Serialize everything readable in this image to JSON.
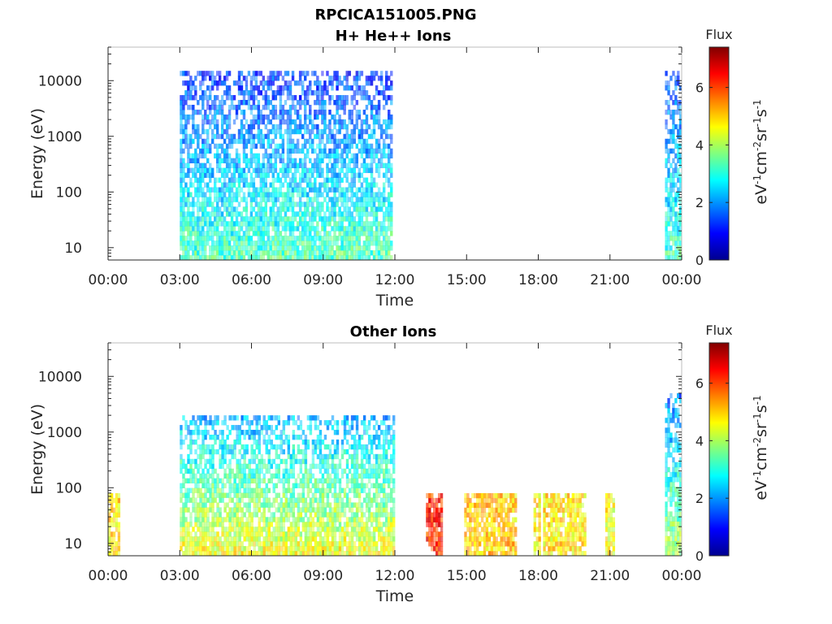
{
  "figure": {
    "filename_title": "RPCICA151005.PNG"
  },
  "colorbar": {
    "title": "Flux",
    "unit_label_parts": [
      "eV",
      "-1",
      "cm",
      "-2",
      "sr",
      "-1",
      "s",
      "-1"
    ],
    "ticks": [
      "0",
      "2",
      "4",
      "6"
    ],
    "range": [
      0,
      7.4
    ],
    "colormap": "jet"
  },
  "chart_data": [
    {
      "type": "heatmap",
      "title": "H+ He++ Ions",
      "xlabel": "Time",
      "ylabel": "Energy (eV)",
      "x_ticks": [
        "00:00",
        "03:00",
        "06:00",
        "09:00",
        "12:00",
        "15:00",
        "18:00",
        "21:00",
        "00:00"
      ],
      "x_range_hours": [
        0,
        24
      ],
      "y_scale": "log",
      "y_range_eV": [
        6,
        40000
      ],
      "y_ticks": [
        "10",
        "100",
        "1000",
        "10000"
      ],
      "flux_range": [
        0,
        7.4
      ],
      "data_segments": [
        {
          "start_hour": 3.0,
          "end_hour": 6.75,
          "max_energy_eV": 15000,
          "low_energy_flux": 3.3,
          "high_energy_flux": 1.3
        },
        {
          "start_hour": 6.75,
          "end_hour": 11.9,
          "max_energy_eV": 15000,
          "low_energy_flux": 3.4,
          "high_energy_flux": 1.3
        },
        {
          "start_hour": 23.3,
          "end_hour": 24.0,
          "max_energy_eV": 15000,
          "low_energy_flux": 3.2,
          "high_energy_flux": 1.5
        }
      ]
    },
    {
      "type": "heatmap",
      "title": "Other Ions",
      "xlabel": "Time",
      "ylabel": "Energy (eV)",
      "x_ticks": [
        "00:00",
        "03:00",
        "06:00",
        "09:00",
        "12:00",
        "15:00",
        "18:00",
        "21:00",
        "00:00"
      ],
      "x_range_hours": [
        0,
        24
      ],
      "y_scale": "log",
      "y_range_eV": [
        6,
        40000
      ],
      "y_ticks": [
        "10",
        "100",
        "1000",
        "10000"
      ],
      "flux_range": [
        0,
        7.4
      ],
      "data_segments": [
        {
          "start_hour": 0.0,
          "end_hour": 0.5,
          "max_energy_eV": 80,
          "low_energy_flux": 4.8,
          "high_energy_flux": 4.8
        },
        {
          "start_hour": 3.0,
          "end_hour": 12.0,
          "max_energy_eV": 2000,
          "low_energy_flux": 4.6,
          "high_energy_flux": 2.2
        },
        {
          "start_hour": 13.3,
          "end_hour": 14.0,
          "max_energy_eV": 80,
          "low_energy_flux": 6.2,
          "high_energy_flux": 6.2
        },
        {
          "start_hour": 14.9,
          "end_hour": 17.1,
          "max_energy_eV": 80,
          "low_energy_flux": 5.0,
          "high_energy_flux": 5.0
        },
        {
          "start_hour": 17.8,
          "end_hour": 18.1,
          "max_energy_eV": 80,
          "low_energy_flux": 4.8,
          "high_energy_flux": 4.8
        },
        {
          "start_hour": 18.2,
          "end_hour": 20.0,
          "max_energy_eV": 80,
          "low_energy_flux": 4.8,
          "high_energy_flux": 4.8
        },
        {
          "start_hour": 20.8,
          "end_hour": 21.2,
          "max_energy_eV": 80,
          "low_energy_flux": 4.6,
          "high_energy_flux": 4.6
        },
        {
          "start_hour": 23.3,
          "end_hour": 24.0,
          "max_energy_eV": 5000,
          "low_energy_flux": 4.0,
          "high_energy_flux": 1.8
        }
      ]
    }
  ]
}
